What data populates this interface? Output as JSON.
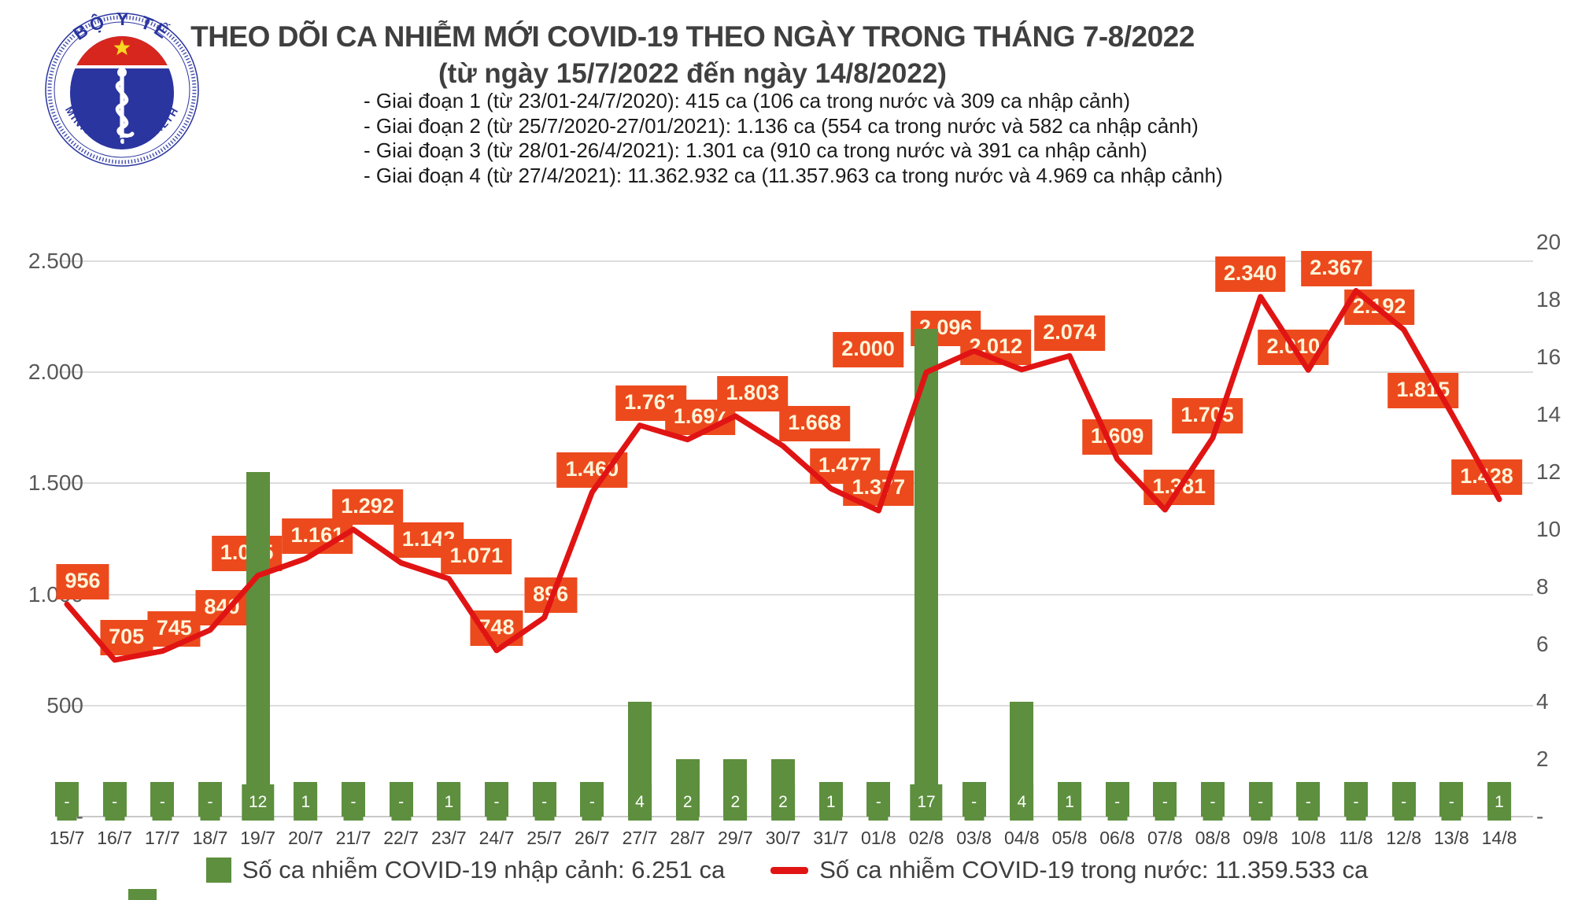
{
  "header": {
    "logo": {
      "top_text": "BỘ Y TẾ",
      "bottom_text": "MINISTRY OF HEALTH"
    },
    "title": "THEO DÕI CA NHIỄM MỚI COVID-19 THEO NGÀY TRONG THÁNG 7-8/2022",
    "subtitle": "(từ ngày 15/7/2022 đến ngày 14/8/2022)",
    "notes": [
      "- Giai đoạn 1 (từ 23/01-24/7/2020): 415 ca (106 ca trong nước và 309 ca nhập cảnh)",
      "- Giai đoạn 2 (từ 25/7/2020-27/01/2021): 1.136 ca (554 ca trong nước và 582 ca nhập cảnh)",
      "- Giai đoạn 3 (từ 28/01-26/4/2021): 1.301 ca (910 ca trong nước và 391 ca nhập cảnh)",
      "- Giai đoạn 4 (từ 27/4/2021): 11.362.932 ca (11.357.963 ca trong nước và 4.969 ca nhập cảnh)"
    ]
  },
  "chart_data": {
    "type": "bar+line",
    "title": "THEO DÕI CA NHIỄM MỚI COVID-19 THEO NGÀY TRONG THÁNG 7-8/2022",
    "categories": [
      "15/7",
      "16/7",
      "17/7",
      "18/7",
      "19/7",
      "20/7",
      "21/7",
      "22/7",
      "23/7",
      "24/7",
      "25/7",
      "26/7",
      "27/7",
      "28/7",
      "29/7",
      "30/7",
      "31/7",
      "01/8",
      "02/8",
      "03/8",
      "04/8",
      "05/8",
      "06/8",
      "07/8",
      "08/8",
      "09/8",
      "10/8",
      "11/8",
      "12/8",
      "13/8",
      "14/8"
    ],
    "series": [
      {
        "name": "Số ca nhiễm COVID-19 nhập cảnh",
        "type": "bar",
        "y_axis": "right",
        "color": "#5d8f3e",
        "values": [
          0,
          0,
          0,
          0,
          12,
          1,
          0,
          0,
          1,
          0,
          0,
          0,
          4,
          2,
          2,
          2,
          1,
          0,
          17,
          0,
          4,
          1,
          0,
          0,
          0,
          0,
          0,
          0,
          0,
          0,
          1
        ],
        "labels": [
          "-",
          "-",
          "-",
          "-",
          "12",
          "1",
          "-",
          "-",
          "1",
          "-",
          "-",
          "-",
          "4",
          "2",
          "2",
          "2",
          "1",
          "-",
          "17",
          "-",
          "4",
          "1",
          "-",
          "-",
          "-",
          "-",
          "-",
          "-",
          "-",
          "-",
          "1"
        ]
      },
      {
        "name": "Số ca nhiễm COVID-19 trong nước",
        "type": "line",
        "y_axis": "left",
        "color": "#e11414",
        "label_bg": "#ec4a1d",
        "values": [
          956,
          705,
          745,
          840,
          1085,
          1161,
          1292,
          1142,
          1071,
          748,
          896,
          1460,
          1761,
          1697,
          1803,
          1668,
          1477,
          1377,
          2000,
          2096,
          2012,
          2074,
          1609,
          1381,
          1705,
          2340,
          2010,
          2367,
          2192,
          1815,
          1428
        ],
        "labels": [
          "956",
          "705",
          "745",
          "840",
          "1.085",
          "1.161",
          "1.292",
          "1.142",
          "1.071",
          "748",
          "896",
          "1.460",
          "1.761",
          "1.697",
          "1.803",
          "1.668",
          "1.477",
          "1.377",
          "2.000",
          "2.096",
          "2.012",
          "2.074",
          "1.609",
          "1.381",
          "1.705",
          "2.340",
          "2.010",
          "2.367",
          "2.192",
          "1.815",
          "1.428"
        ]
      }
    ],
    "left_axis": {
      "min": 0,
      "max": 2500,
      "tick_step": 500,
      "tick_labels": [
        "2.500",
        "2.000",
        "1.500",
        "1.000",
        "500",
        "-"
      ]
    },
    "right_axis": {
      "min": 0,
      "max": 20,
      "tick_step": 2,
      "tick_labels": [
        "20",
        "18",
        "16",
        "14",
        "12",
        "10",
        "8",
        "6",
        "4",
        "2",
        "-"
      ]
    },
    "grid": true,
    "legend_position": "bottom",
    "label_dx": [
      20,
      15,
      15,
      15,
      -14,
      15,
      18,
      35,
      35,
      0,
      8,
      0,
      14,
      16,
      22,
      40,
      18,
      0,
      -74,
      -36,
      -33,
      0,
      0,
      18,
      -7,
      -13,
      -19,
      -25,
      -31,
      -36,
      -16
    ]
  },
  "legend": {
    "imported_label": "Số ca nhiễm COVID-19 nhập cảnh: 6.251 ca",
    "domestic_label": "Số ca nhiễm COVID-19 trong nước: 11.359.533 ca"
  },
  "colors": {
    "bar_green": "#5d8f3e",
    "line_red": "#e11414",
    "point_label_bg": "#ec4a1d",
    "grid_gray": "#dcdcdc",
    "axis_text": "#595959",
    "title_text": "#3f3f3f"
  }
}
